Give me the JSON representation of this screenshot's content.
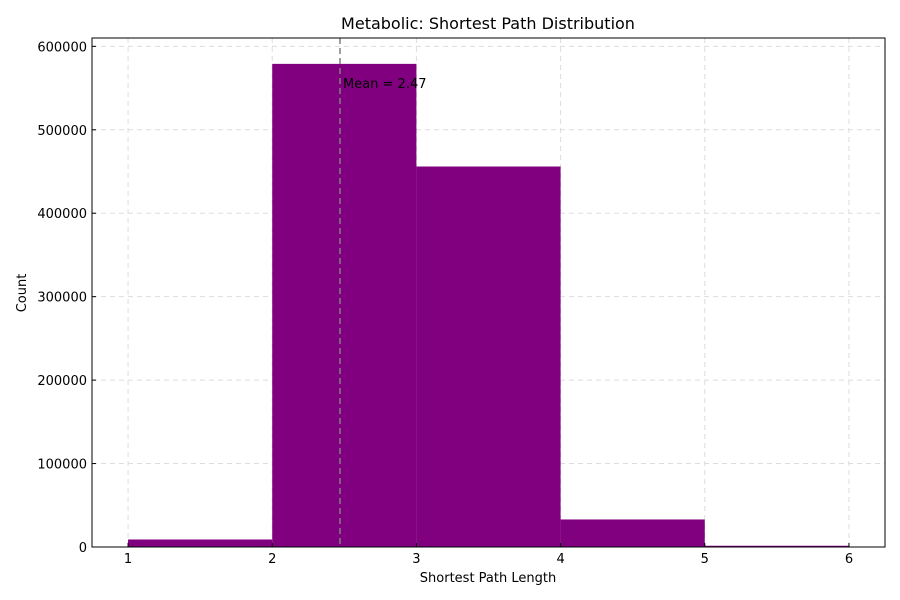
{
  "chart_data": {
    "type": "bar",
    "title": "Metabolic: Shortest Path Distribution",
    "xlabel": "Shortest Path Length",
    "ylabel": "Count",
    "bins": [
      {
        "from": 1,
        "to": 2,
        "count": 9000
      },
      {
        "from": 2,
        "to": 3,
        "count": 579000
      },
      {
        "from": 3,
        "to": 4,
        "count": 456000
      },
      {
        "from": 4,
        "to": 5,
        "count": 33000
      },
      {
        "from": 5,
        "to": 6,
        "count": 1500
      }
    ],
    "xlim": [
      0.75,
      6.25
    ],
    "ylim": [
      0,
      610000
    ],
    "xticks": [
      1,
      2,
      3,
      4,
      5,
      6
    ],
    "yticks": [
      0,
      100000,
      200000,
      300000,
      400000,
      500000,
      600000
    ],
    "grid": true,
    "bar_color": "#800080",
    "mean_line": {
      "x": 2.47,
      "label": "Mean = 2.47",
      "color": "#808080"
    }
  }
}
